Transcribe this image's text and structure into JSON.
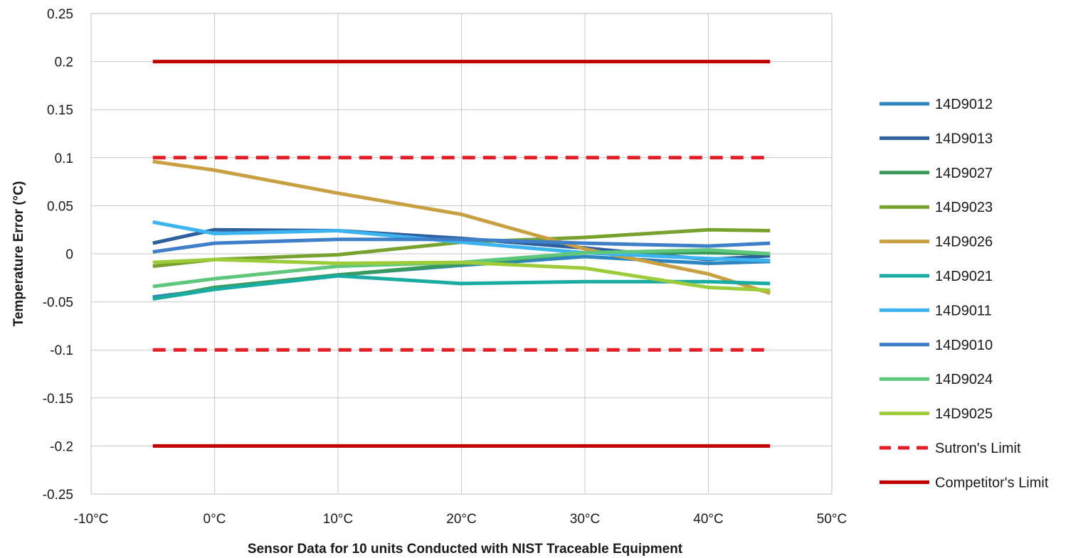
{
  "chart_data": {
    "type": "line",
    "title": "",
    "xlabel": "Sensor Data for 10 units Conducted with NIST Traceable Equipment",
    "ylabel": "Temperature Error (°C)",
    "xlim": [
      -10,
      50
    ],
    "ylim": [
      -0.25,
      0.25
    ],
    "x_ticks": [
      -10,
      0,
      10,
      20,
      30,
      40,
      50
    ],
    "x_tick_labels": [
      "-10°C",
      "0°C",
      "10°C",
      "20°C",
      "30°C",
      "40°C",
      "50°C"
    ],
    "y_ticks": [
      -0.25,
      -0.2,
      -0.15,
      -0.1,
      -0.05,
      0,
      0.05,
      0.1,
      0.15,
      0.2,
      0.25
    ],
    "y_tick_labels": [
      "-0.25",
      "-0.2",
      "-0.15",
      "-0.1",
      "-0.05",
      "0",
      "0.05",
      "0.1",
      "0.15",
      "0.2",
      "0.25"
    ],
    "grid": true,
    "legend_position": "right",
    "x": [
      -5,
      0,
      10,
      20,
      30,
      40,
      45
    ],
    "series": [
      {
        "name": "14D9012",
        "color": "#2e86c1",
        "dash": false,
        "values": [
          -0.045,
          -0.037,
          -0.022,
          -0.012,
          -0.003,
          -0.01,
          -0.008
        ]
      },
      {
        "name": "14D9013",
        "color": "#2e5f9e",
        "dash": false,
        "values": [
          0.011,
          0.025,
          0.024,
          0.016,
          0.006,
          -0.006,
          -0.002
        ]
      },
      {
        "name": "14D9027",
        "color": "#3a9a5c",
        "dash": false,
        "values": [
          -0.047,
          -0.035,
          -0.022,
          -0.011,
          0.001,
          0.001,
          0.0
        ]
      },
      {
        "name": "14D9023",
        "color": "#78a22f",
        "dash": false,
        "values": [
          -0.013,
          -0.006,
          -0.001,
          0.012,
          0.017,
          0.025,
          0.024
        ]
      },
      {
        "name": "14D9026",
        "color": "#c8a041",
        "dash": false,
        "values": [
          0.096,
          0.087,
          0.063,
          0.041,
          0.005,
          -0.021,
          -0.041
        ]
      },
      {
        "name": "14D9021",
        "color": "#1aaba3",
        "dash": false,
        "values": [
          -0.047,
          -0.037,
          -0.023,
          -0.031,
          -0.029,
          -0.029,
          -0.031
        ]
      },
      {
        "name": "14D9011",
        "color": "#3cb4ef",
        "dash": false,
        "values": [
          0.033,
          0.021,
          0.024,
          0.012,
          0.001,
          -0.005,
          -0.007
        ]
      },
      {
        "name": "14D9010",
        "color": "#3f7fc8",
        "dash": false,
        "values": [
          0.002,
          0.011,
          0.015,
          0.015,
          0.011,
          0.008,
          0.011
        ]
      },
      {
        "name": "14D9024",
        "color": "#5ec77c",
        "dash": false,
        "values": [
          -0.034,
          -0.026,
          -0.013,
          -0.009,
          0.001,
          0.004,
          0.0
        ]
      },
      {
        "name": "14D9025",
        "color": "#9ccc3a",
        "dash": false,
        "values": [
          -0.009,
          -0.006,
          -0.01,
          -0.009,
          -0.015,
          -0.035,
          -0.038
        ]
      },
      {
        "name": "Sutron's Limit",
        "color": "#e31e24",
        "dash": true,
        "values_upper": [
          0.1,
          0.1,
          0.1,
          0.1,
          0.1,
          0.1,
          0.1
        ],
        "values_lower": [
          -0.1,
          -0.1,
          -0.1,
          -0.1,
          -0.1,
          -0.1,
          -0.1
        ]
      },
      {
        "name": "Competitor's Limit",
        "color": "#c00000",
        "dash": false,
        "values_upper": [
          0.2,
          0.2,
          0.2,
          0.2,
          0.2,
          0.2,
          0.2
        ],
        "values_lower": [
          -0.2,
          -0.2,
          -0.2,
          -0.2,
          -0.2,
          -0.2,
          -0.2
        ]
      }
    ]
  }
}
